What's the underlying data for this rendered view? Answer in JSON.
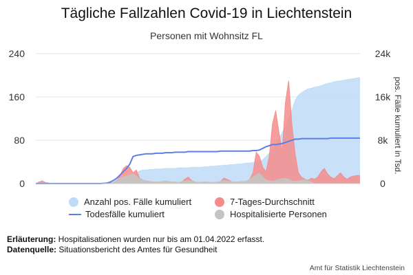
{
  "title": "Tägliche Fallzahlen Covid-19 in Liechtenstein",
  "subtitle": "Personen mit Wohnsitz FL",
  "legend": [
    {
      "label": "Anzahl pos. Fälle kumuliert",
      "color": "#bfdcf7",
      "kind": "circle"
    },
    {
      "label": "7-Tages-Durchschnitt",
      "color": "#f48c8c",
      "kind": "circle"
    },
    {
      "label": "Todesfälle kumuliert",
      "color": "#5b7fe6",
      "kind": "line"
    },
    {
      "label": "Hospitalisierte Personen",
      "color": "#c4c4c4",
      "kind": "circle"
    }
  ],
  "notes": {
    "erlaeuterung_label": "Erläuterung:",
    "erlaeuterung_text": " Hospitalisationen wurden nur bis am 01.04.2022 erfasst.",
    "datenquelle_label": "Datenquelle:",
    "datenquelle_text": " Situationsbericht des Amtes für Gesundheit"
  },
  "credit": "Amt für Statistik Liechtenstein",
  "chart_data": {
    "type": "area",
    "title": "Tägliche Fallzahlen Covid-19 in Liechtenstein",
    "subtitle": "Personen mit Wohnsitz FL",
    "x_axis": {
      "type": "time-index",
      "range": [
        0,
        100
      ],
      "tick_labels": []
    },
    "y_left": {
      "ylim": [
        0,
        240
      ],
      "ticks": [
        "0",
        "80",
        "160",
        "240"
      ],
      "label": ""
    },
    "y_right": {
      "ylim": [
        0,
        24
      ],
      "ticks": [
        "0",
        "8k",
        "16k",
        "24k"
      ],
      "label": "pos. Fälle kumuliert in Tsd."
    },
    "grid": true,
    "legend_position": "bottom",
    "series": [
      {
        "name": "Anzahl pos. Fälle kumuliert",
        "axis": "right",
        "type": "area",
        "color": "#bfdcf7",
        "x": [
          0,
          2,
          3,
          4,
          5,
          20,
          22,
          24,
          25,
          26,
          27,
          28,
          29,
          30,
          31,
          32,
          33,
          34,
          35,
          36,
          37,
          38,
          39,
          40,
          41,
          42,
          43,
          44,
          45,
          46,
          47,
          48,
          49,
          50,
          51,
          52,
          53,
          54,
          55,
          56,
          57,
          58,
          59,
          60,
          61,
          62,
          63,
          64,
          65,
          66,
          67,
          68,
          69,
          70,
          71,
          72,
          73,
          74,
          75,
          76,
          77,
          78,
          79,
          80,
          81,
          82,
          83,
          84,
          85,
          86,
          87,
          88,
          89,
          90,
          91,
          92,
          93,
          94,
          95,
          96,
          97,
          98,
          99,
          100
        ],
        "values": [
          0,
          0.1,
          0.1,
          0.1,
          0.1,
          0.1,
          0.1,
          0.1,
          0.2,
          0.3,
          0.5,
          0.8,
          1.2,
          1.6,
          2.0,
          2.3,
          2.5,
          2.5,
          2.6,
          2.6,
          2.7,
          2.7,
          2.7,
          2.8,
          2.8,
          2.8,
          2.8,
          2.9,
          2.9,
          2.9,
          2.9,
          3.0,
          3.0,
          3.0,
          3.0,
          3.1,
          3.1,
          3.2,
          3.2,
          3.3,
          3.3,
          3.4,
          3.4,
          3.5,
          3.5,
          3.6,
          3.6,
          3.7,
          3.8,
          3.8,
          3.9,
          4.0,
          4.1,
          4.4,
          5.0,
          5.6,
          6.3,
          7.2,
          8.3,
          9.4,
          10.5,
          12.0,
          13.5,
          15.4,
          16.3,
          16.8,
          17.2,
          17.5,
          17.6,
          17.8,
          17.9,
          18.1,
          18.3,
          18.5,
          18.6,
          18.8,
          18.9,
          19.0,
          19.1,
          19.2,
          19.3,
          19.4,
          19.5,
          19.6
        ]
      },
      {
        "name": "7-Tages-Durchschnitt",
        "axis": "left",
        "type": "area",
        "color": "#f48c8c",
        "x": [
          0,
          1,
          2,
          3,
          4,
          5,
          20,
          22,
          24,
          25,
          26,
          27,
          28,
          29,
          30,
          31,
          32,
          33,
          34,
          35,
          36,
          37,
          38,
          39,
          40,
          41,
          42,
          43,
          44,
          45,
          46,
          47,
          48,
          49,
          50,
          51,
          52,
          53,
          54,
          55,
          56,
          57,
          58,
          59,
          60,
          61,
          62,
          63,
          64,
          65,
          66,
          67,
          68,
          69,
          70,
          71,
          72,
          73,
          74,
          75,
          76,
          77,
          78,
          79,
          80,
          81,
          82,
          83,
          84,
          85,
          86,
          87,
          88,
          89,
          90,
          91,
          92,
          93,
          94,
          95,
          96,
          97,
          98,
          99,
          100
        ],
        "values": [
          0,
          3,
          5,
          2,
          1,
          0,
          0,
          1,
          2,
          5,
          15,
          28,
          33,
          30,
          20,
          25,
          10,
          6,
          5,
          4,
          3,
          3,
          2,
          3,
          4,
          2,
          3,
          2,
          1,
          3,
          8,
          12,
          6,
          3,
          2,
          2,
          3,
          2,
          1,
          2,
          2,
          4,
          10,
          8,
          5,
          2,
          2,
          3,
          2,
          3,
          8,
          20,
          58,
          50,
          30,
          22,
          50,
          110,
          135,
          95,
          60,
          150,
          190,
          110,
          55,
          20,
          12,
          8,
          6,
          10,
          8,
          12,
          22,
          28,
          18,
          12,
          9,
          14,
          20,
          12,
          8,
          12,
          14,
          15,
          15
        ]
      },
      {
        "name": "Hospitalisierte Personen",
        "axis": "left",
        "type": "area",
        "color": "#c4c4c4",
        "x": [
          0,
          5,
          20,
          23,
          24,
          25,
          26,
          27,
          28,
          29,
          30,
          31,
          32,
          33,
          34,
          35,
          36,
          37,
          38,
          39,
          40,
          41,
          42,
          43,
          44,
          45,
          46,
          47,
          48,
          49,
          50,
          51,
          52,
          53,
          54,
          55,
          56,
          57,
          58,
          59,
          60,
          61,
          62,
          63,
          64,
          65,
          66,
          67,
          68,
          69,
          70,
          71,
          72,
          73,
          74,
          75,
          76,
          77,
          78,
          79,
          80,
          81,
          82,
          83,
          84,
          85,
          86
        ],
        "values": [
          0,
          0,
          0,
          0,
          3,
          7,
          10,
          12,
          14,
          16,
          18,
          14,
          9,
          7,
          5,
          4,
          3,
          3,
          3,
          4,
          5,
          4,
          3,
          3,
          2,
          4,
          5,
          6,
          5,
          3,
          2,
          2,
          3,
          3,
          2,
          2,
          3,
          4,
          6,
          5,
          4,
          3,
          3,
          4,
          4,
          5,
          8,
          12,
          16,
          19,
          12,
          7,
          5,
          4,
          6,
          8,
          9,
          10,
          8,
          5,
          4,
          5,
          6,
          7,
          5,
          3,
          0
        ]
      },
      {
        "name": "Todesfälle kumuliert",
        "axis": "left",
        "type": "line",
        "color": "#5b7fe6",
        "x": [
          0,
          20,
          22,
          23,
          24,
          25,
          26,
          27,
          28,
          29,
          30,
          31,
          32,
          33,
          34,
          35,
          36,
          37,
          38,
          39,
          40,
          41,
          42,
          43,
          44,
          45,
          46,
          47,
          48,
          49,
          50,
          51,
          52,
          53,
          54,
          55,
          56,
          57,
          58,
          59,
          60,
          61,
          62,
          63,
          64,
          65,
          66,
          67,
          68,
          69,
          70,
          71,
          72,
          73,
          74,
          75,
          76,
          77,
          78,
          79,
          80,
          81,
          82,
          83,
          84,
          85,
          86,
          87,
          88,
          89,
          90,
          91,
          92,
          93,
          94,
          95,
          96,
          97,
          98,
          99,
          100
        ],
        "values": [
          0,
          0,
          1,
          3,
          6,
          10,
          16,
          22,
          28,
          36,
          50,
          52,
          53,
          54,
          55,
          55,
          55,
          56,
          56,
          56,
          57,
          57,
          57,
          58,
          58,
          58,
          58,
          59,
          59,
          59,
          59,
          59,
          59,
          59,
          59,
          59,
          59,
          60,
          60,
          60,
          60,
          60,
          60,
          60,
          60,
          60,
          60,
          61,
          61,
          62,
          65,
          68,
          70,
          72,
          72,
          73,
          74,
          76,
          78,
          80,
          82,
          82,
          83,
          83,
          83,
          83,
          83,
          83,
          83,
          83,
          83,
          84,
          84,
          84,
          84,
          84,
          84,
          84,
          84,
          84,
          84
        ]
      }
    ]
  }
}
